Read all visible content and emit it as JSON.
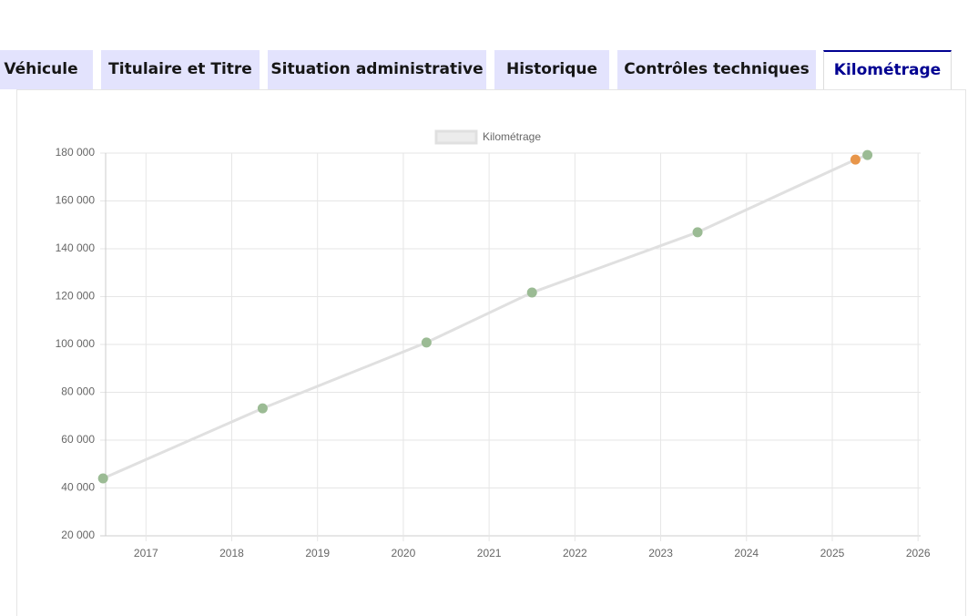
{
  "tabs": {
    "items": [
      "Véhicule",
      "Titulaire et Titre",
      "Situation administrative",
      "Historique",
      "Contrôles techniques",
      "Kilométrage"
    ],
    "active": 5
  },
  "chart_data": {
    "type": "line",
    "series": [
      {
        "name": "Kilométrage",
        "color": "#e0e0e0",
        "x": [
          2016.5,
          2018.36,
          2020.27,
          2021.5,
          2023.43,
          2025.27,
          2025.41
        ],
        "values": [
          44000,
          73300,
          100800,
          121700,
          146900,
          177300,
          179200
        ],
        "point_colors": [
          "#9bbb94",
          "#9bbb94",
          "#9bbb94",
          "#9bbb94",
          "#9bbb94",
          "#e8964a",
          "#9bbb94"
        ]
      }
    ],
    "xlim": [
      2016.53,
      2026.03
    ],
    "xticks": [
      2017,
      2018,
      2019,
      2020,
      2021,
      2022,
      2023,
      2024,
      2025,
      2026
    ],
    "ylim": [
      20000,
      180000
    ],
    "yticks": [
      {
        "value": 20000,
        "label": "20 000"
      },
      {
        "value": 40000,
        "label": "40 000"
      },
      {
        "value": 60000,
        "label": "60 000"
      },
      {
        "value": 80000,
        "label": "80 000"
      },
      {
        "value": 100000,
        "label": "100 000"
      },
      {
        "value": 120000,
        "label": "120 000"
      },
      {
        "value": 140000,
        "label": "140 000"
      },
      {
        "value": 160000,
        "label": "160 000"
      },
      {
        "value": 180000,
        "label": "180 000"
      }
    ],
    "grid": true,
    "legend": "top"
  }
}
